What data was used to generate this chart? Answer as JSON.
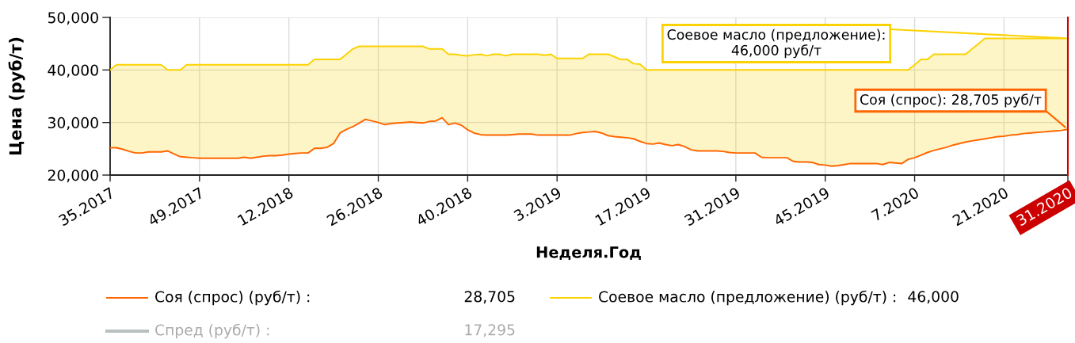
{
  "chart_data": {
    "type": "line",
    "xlabel": "Неделя.Год",
    "ylabel": "Цена (руб/т)",
    "categories": [
      "35.2017",
      null,
      null,
      null,
      null,
      null,
      null,
      null,
      null,
      null,
      null,
      null,
      null,
      null,
      "49.2017",
      null,
      null,
      null,
      null,
      null,
      null,
      null,
      null,
      null,
      null,
      null,
      null,
      null,
      "12.2018",
      null,
      null,
      null,
      null,
      null,
      null,
      null,
      null,
      null,
      null,
      null,
      null,
      null,
      "26.2018",
      null,
      null,
      null,
      null,
      null,
      null,
      null,
      null,
      null,
      null,
      null,
      null,
      null,
      "40.2018",
      null,
      null,
      null,
      null,
      null,
      null,
      null,
      null,
      null,
      null,
      null,
      null,
      null,
      "3.2019",
      null,
      null,
      null,
      null,
      null,
      null,
      null,
      null,
      null,
      null,
      null,
      null,
      null,
      "17.2019",
      null,
      null,
      null,
      null,
      null,
      null,
      null,
      null,
      null,
      null,
      null,
      null,
      null,
      "31.2019",
      null,
      null,
      null,
      null,
      null,
      null,
      null,
      null,
      null,
      null,
      null,
      null,
      null,
      "45.2019",
      null,
      null,
      null,
      null,
      null,
      null,
      null,
      null,
      null,
      null,
      null,
      null,
      null,
      "7.2020",
      null,
      null,
      null,
      null,
      null,
      null,
      null,
      null,
      null,
      null,
      null,
      null,
      null,
      "21.2020",
      null,
      null,
      null,
      null,
      null,
      null,
      null,
      null,
      null,
      "31.2020"
    ],
    "ylim": [
      20000,
      50000
    ],
    "yticks": [
      {
        "value": 20000,
        "label": "20,000"
      },
      {
        "value": 30000,
        "label": "30,000"
      },
      {
        "value": 40000,
        "label": "40,000"
      },
      {
        "value": 50000,
        "label": "50,000"
      }
    ],
    "grid": true,
    "legend": "bottom",
    "series": [
      {
        "name": "Соя (спрос) (руб/т) :",
        "color": "#ff6600",
        "values": [
          25200,
          25200,
          24900,
          24500,
          24200,
          24200,
          24400,
          24400,
          24400,
          24600,
          24000,
          23500,
          23400,
          23300,
          23200,
          23200,
          23200,
          23200,
          23200,
          23200,
          23200,
          23400,
          23200,
          23400,
          23600,
          23700,
          23700,
          23800,
          24000,
          24100,
          24200,
          24200,
          25100,
          25100,
          25300,
          26000,
          28000,
          28700,
          29200,
          29900,
          30600,
          30300,
          30000,
          29600,
          29800,
          29900,
          30000,
          30100,
          30000,
          29900,
          30200,
          30300,
          30900,
          29600,
          29900,
          29500,
          28600,
          28000,
          27700,
          27600,
          27600,
          27600,
          27600,
          27700,
          27800,
          27800,
          27800,
          27600,
          27600,
          27600,
          27600,
          27600,
          27600,
          27900,
          28100,
          28200,
          28300,
          28000,
          27500,
          27300,
          27200,
          27100,
          26900,
          26400,
          26000,
          25900,
          26100,
          25800,
          25600,
          25800,
          25400,
          24800,
          24600,
          24600,
          24600,
          24600,
          24500,
          24300,
          24200,
          24200,
          24200,
          24200,
          23400,
          23300,
          23300,
          23300,
          23300,
          22600,
          22500,
          22500,
          22400,
          22000,
          21900,
          21700,
          21800,
          22000,
          22200,
          22200,
          22200,
          22200,
          22200,
          22000,
          22400,
          22300,
          22200,
          23000,
          23300,
          23800,
          24300,
          24700,
          25000,
          25300,
          25700,
          26000,
          26300,
          26500,
          26700,
          26900,
          27100,
          27300,
          27400,
          27600,
          27700,
          27900,
          28000,
          28100,
          28200,
          28300,
          28400,
          28500,
          28705
        ]
      },
      {
        "name": "Соевое масло (предложение) (руб/т) :",
        "color": "#fcd202",
        "values": [
          40000,
          41000,
          41000,
          41000,
          41000,
          41000,
          41000,
          41000,
          41000,
          40000,
          40000,
          40000,
          41000,
          41000,
          41000,
          41000,
          41000,
          41000,
          41000,
          41000,
          41000,
          41000,
          41000,
          41000,
          41000,
          41000,
          41000,
          41000,
          41000,
          41000,
          41000,
          41000,
          42000,
          42000,
          42000,
          42000,
          42000,
          43000,
          44000,
          44500,
          44500,
          44500,
          44500,
          44500,
          44500,
          44500,
          44500,
          44500,
          44500,
          44500,
          44000,
          44000,
          44000,
          43000,
          43000,
          42800,
          42700,
          42900,
          43000,
          42700,
          43000,
          43000,
          42700,
          43000,
          43000,
          43000,
          43000,
          43000,
          42800,
          43000,
          42200,
          42200,
          42200,
          42200,
          42200,
          43000,
          43000,
          43000,
          43000,
          42500,
          42000,
          42000,
          41200,
          41100,
          40000,
          40000,
          40000,
          40000,
          40000,
          40000,
          40000,
          40000,
          40000,
          40000,
          40000,
          40000,
          40000,
          40000,
          40000,
          40000,
          40000,
          40000,
          40000,
          40000,
          40000,
          40000,
          40000,
          40000,
          40000,
          40000,
          40000,
          40000,
          40000,
          40000,
          40000,
          40000,
          40000,
          40000,
          40000,
          40000,
          40000,
          40000,
          40000,
          40000,
          40000,
          40000,
          41000,
          42000,
          42000,
          43000,
          43000,
          43000,
          43000,
          43000,
          43000,
          44000,
          45000,
          46000,
          46000,
          46000,
          46000,
          46000,
          46000,
          46000,
          46000,
          46000,
          46000,
          46000,
          46000,
          46000,
          46000
        ],
        "lower": [
          25200,
          25200,
          24900,
          24500,
          24200,
          24200,
          24400,
          24400,
          24400,
          24600,
          24000,
          23500,
          23400,
          23300,
          23200,
          23200,
          23200,
          23200,
          23200,
          23200,
          23200,
          23400,
          23200,
          23400,
          23600,
          23700,
          23700,
          23800,
          24000,
          24100,
          24200,
          24200,
          25100,
          25100,
          25300,
          26000,
          28000,
          28700,
          29200,
          29900,
          30600,
          30300,
          30000,
          29600,
          29800,
          29900,
          30000,
          30100,
          30000,
          29900,
          30200,
          30300,
          30900,
          29600,
          29900,
          29500,
          28600,
          28000,
          27700,
          27600,
          27600,
          27600,
          27600,
          27700,
          27800,
          27800,
          27800,
          27600,
          27600,
          27600,
          27600,
          27600,
          27600,
          27900,
          28100,
          28200,
          28300,
          28000,
          27500,
          27300,
          27200,
          27100,
          26900,
          26400,
          26000,
          25900,
          26100,
          25800,
          25600,
          25800,
          25400,
          24800,
          24600,
          24600,
          24600,
          24600,
          24500,
          24300,
          24200,
          24200,
          24200,
          24200,
          23400,
          23300,
          23300,
          23300,
          23300,
          22600,
          22500,
          22500,
          22400,
          22000,
          21900,
          21700,
          21800,
          22000,
          22200,
          22200,
          22200,
          22200,
          22200,
          22000,
          22400,
          22300,
          22200,
          23000,
          23300,
          23800,
          24300,
          24700,
          25000,
          25300,
          25700,
          26000,
          26300,
          26500,
          26700,
          26900,
          27100,
          27300,
          27400,
          27600,
          27700,
          27900,
          28000,
          28100,
          28200,
          28300,
          28400,
          28500,
          28705
        ],
        "upper": [
          40000,
          41000,
          41000,
          41000,
          41000,
          41000,
          41000,
          41000,
          41000,
          40000,
          40000,
          40000,
          41000,
          41000,
          41000,
          41000,
          41000,
          41000,
          41000,
          41000,
          41000,
          41000,
          41000,
          41000,
          41000,
          41000,
          41000,
          41000,
          41000,
          41000,
          41000,
          41000,
          42000,
          42000,
          42000,
          42000,
          42000,
          43000,
          44000,
          44500,
          44500,
          44500,
          44500,
          44500,
          44500,
          44500,
          44500,
          44500,
          44500,
          44500,
          44000,
          44000,
          44000,
          43000,
          43000,
          42800,
          42700,
          42900,
          43000,
          42700,
          43000,
          43000,
          42700,
          43000,
          43000,
          43000,
          43000,
          43000,
          42800,
          43000,
          42200,
          42200,
          42200,
          42200,
          42200,
          43000,
          43000,
          43000,
          43000,
          42500,
          42000,
          42000,
          41200,
          41100,
          40000,
          40000,
          40000,
          40000,
          40000,
          40000,
          40000,
          40000,
          40000,
          40000,
          40000,
          40000,
          40000,
          40000,
          40000,
          40000,
          40000,
          40000,
          40000,
          40000,
          40000,
          40000,
          40000,
          40000,
          40000,
          40000,
          40000,
          40000,
          40000,
          40000,
          40000,
          40000,
          40000,
          40000,
          40000,
          40000,
          40000,
          40000,
          40000,
          40000,
          40000,
          40000,
          41000,
          42000,
          42000,
          43000,
          43000,
          43000,
          43000,
          43000,
          43000,
          44000,
          45000,
          46000,
          46000,
          46000,
          46000,
          46000,
          46000,
          46000,
          46000,
          46000,
          46000,
          46000,
          46000,
          46000,
          46000
        ]
      },
      {
        "name": "Спред (руб/т) :",
        "color": "#b8c0c0",
        "values": [
          null,
          null,
          null,
          null,
          null,
          null,
          null,
          null,
          null,
          null,
          null,
          null,
          null,
          null,
          null,
          null,
          null,
          null,
          null,
          null,
          null,
          null,
          null,
          null,
          null,
          null,
          null,
          null,
          null,
          null,
          null,
          null,
          null,
          null,
          null,
          null,
          null,
          null,
          null,
          null,
          null,
          null,
          null,
          null,
          null,
          null,
          null,
          null,
          null,
          null,
          null,
          null,
          null,
          null,
          null,
          null,
          null,
          null,
          null,
          null,
          null,
          null,
          null,
          null,
          null,
          null,
          null,
          null,
          null,
          null,
          null,
          null,
          null,
          null,
          null,
          null,
          null,
          null,
          null,
          null,
          null,
          null,
          null,
          null,
          null,
          null,
          null,
          null,
          null,
          null,
          null,
          null,
          null,
          null,
          null,
          null,
          null,
          null,
          null,
          null,
          null,
          null,
          null,
          null,
          null,
          null,
          null,
          null,
          null,
          null,
          null,
          null,
          null,
          null,
          null,
          null,
          null,
          null,
          null,
          null,
          null,
          null,
          null,
          null,
          null,
          null,
          null,
          null,
          null,
          null,
          null,
          null,
          null,
          null,
          null,
          null,
          null,
          null,
          null,
          null,
          null,
          null,
          null,
          null,
          null,
          null,
          null,
          null,
          null,
          null,
          null
        ]
      }
    ],
    "ref_lines": [
      {
        "axis": "x",
        "value": "31.2020",
        "color": "#cc0000"
      }
    ],
    "annotations": [
      {
        "text": "Соевое масло (предложение):\n46,000 руб/т",
        "x": "31.2020",
        "y": 46000
      },
      {
        "text": "Соя (спрос): 28,705 руб/т",
        "x": "31.2020",
        "y": 28705
      },
      "28,705",
      "46,000",
      "17,295"
    ]
  }
}
